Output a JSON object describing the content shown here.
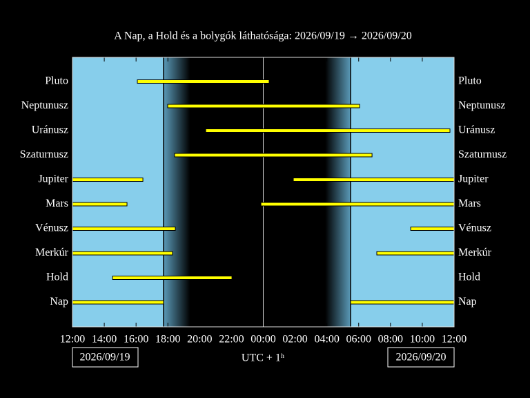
{
  "chart_data": {
    "type": "timeline",
    "title": "A Nap, a Hold és a bolygók láthatósága: 2026/09/19 → 2026/09/20",
    "xlabel": "UTC + 1ʰ",
    "start_date": "2026/09/19",
    "end_date": "2026/09/20",
    "xlim": [
      12,
      36
    ],
    "xticks": [
      {
        "value": 12,
        "label": "12:00"
      },
      {
        "value": 14,
        "label": "14:00"
      },
      {
        "value": 16,
        "label": "16:00"
      },
      {
        "value": 18,
        "label": "18:00"
      },
      {
        "value": 20,
        "label": "20:00"
      },
      {
        "value": 22,
        "label": "22:00"
      },
      {
        "value": 24,
        "label": "00:00"
      },
      {
        "value": 26,
        "label": "02:00"
      },
      {
        "value": 28,
        "label": "04:00"
      },
      {
        "value": 30,
        "label": "06:00"
      },
      {
        "value": 32,
        "label": "08:00"
      },
      {
        "value": 34,
        "label": "10:00"
      },
      {
        "value": 36,
        "label": "12:00"
      }
    ],
    "sunset": 17.73,
    "dusk_end": 19.4,
    "dawn_start": 27.9,
    "sunrise": 29.49,
    "day_color": "#87ceeb",
    "night_color": "#000000",
    "bar_color": "#ffff00",
    "series": [
      {
        "name": "Pluto",
        "intervals": [
          [
            16.08,
            24.37
          ]
        ]
      },
      {
        "name": "Neptunusz",
        "intervals": [
          [
            17.99,
            30.06
          ]
        ]
      },
      {
        "name": "Uránusz",
        "intervals": [
          [
            20.38,
            35.74
          ]
        ]
      },
      {
        "name": "Szaturnusz",
        "intervals": [
          [
            18.42,
            30.84
          ]
        ]
      },
      {
        "name": "Jupiter",
        "intervals": [
          [
            12,
            16.43
          ],
          [
            25.89,
            36
          ]
        ]
      },
      {
        "name": "Mars",
        "intervals": [
          [
            12,
            15.43
          ],
          [
            23.85,
            36
          ]
        ]
      },
      {
        "name": "Vénusz",
        "intervals": [
          [
            12,
            18.47
          ],
          [
            33.27,
            36
          ]
        ]
      },
      {
        "name": "Merkúr",
        "intervals": [
          [
            12,
            18.29
          ],
          [
            31.14,
            36
          ]
        ]
      },
      {
        "name": "Hold",
        "intervals": [
          [
            14.52,
            22.03
          ]
        ]
      },
      {
        "name": "Nap",
        "intervals": [
          [
            12,
            17.73
          ],
          [
            29.49,
            36
          ]
        ]
      }
    ]
  }
}
